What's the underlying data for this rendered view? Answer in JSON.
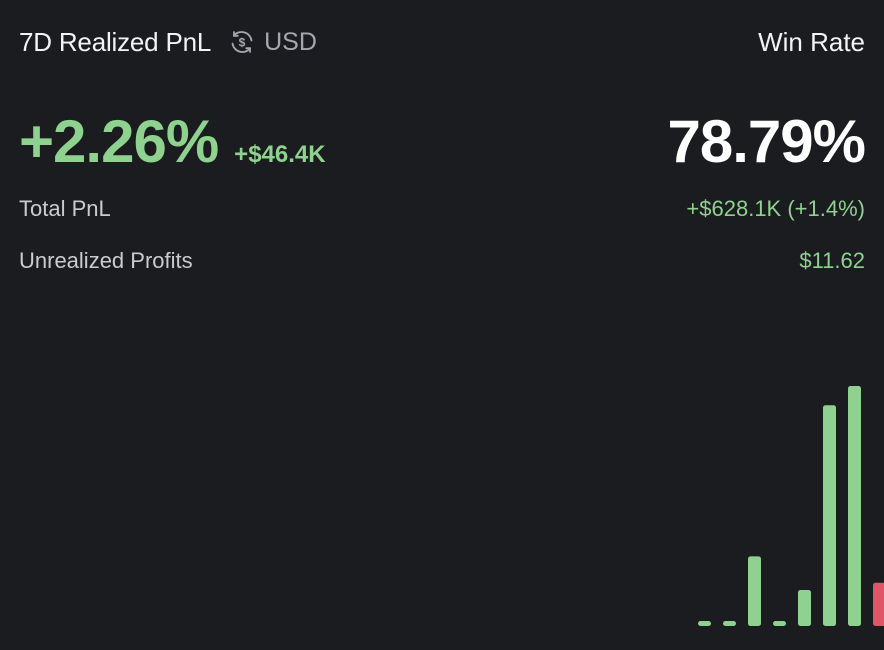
{
  "header": {
    "title": "7D Realized PnL",
    "currency_icon": "currency-swap-icon",
    "currency": "USD",
    "win_rate_label": "Win Rate"
  },
  "metrics": {
    "pnl_percent": "+2.26%",
    "pnl_amount": "+$46.4K",
    "win_rate": "78.79%"
  },
  "rows": {
    "total_pnl_label": "Total PnL",
    "total_pnl_value": "+$628.1K (+1.4%)",
    "unrealized_label": "Unrealized Profits",
    "unrealized_value": "$11.62"
  },
  "colors": {
    "background": "#1b1c1f",
    "positive": "#8fd18f",
    "negative": "#e05567"
  },
  "chart_data": {
    "type": "bar",
    "xlabel": "",
    "ylabel": "",
    "grid": false,
    "legend": "none",
    "ylim": [
      0,
      100
    ],
    "values": [
      2,
      0,
      29,
      2,
      15,
      92,
      100,
      18
    ],
    "signs": [
      "positive",
      "positive",
      "positive",
      "positive",
      "positive",
      "positive",
      "positive",
      "negative"
    ]
  }
}
